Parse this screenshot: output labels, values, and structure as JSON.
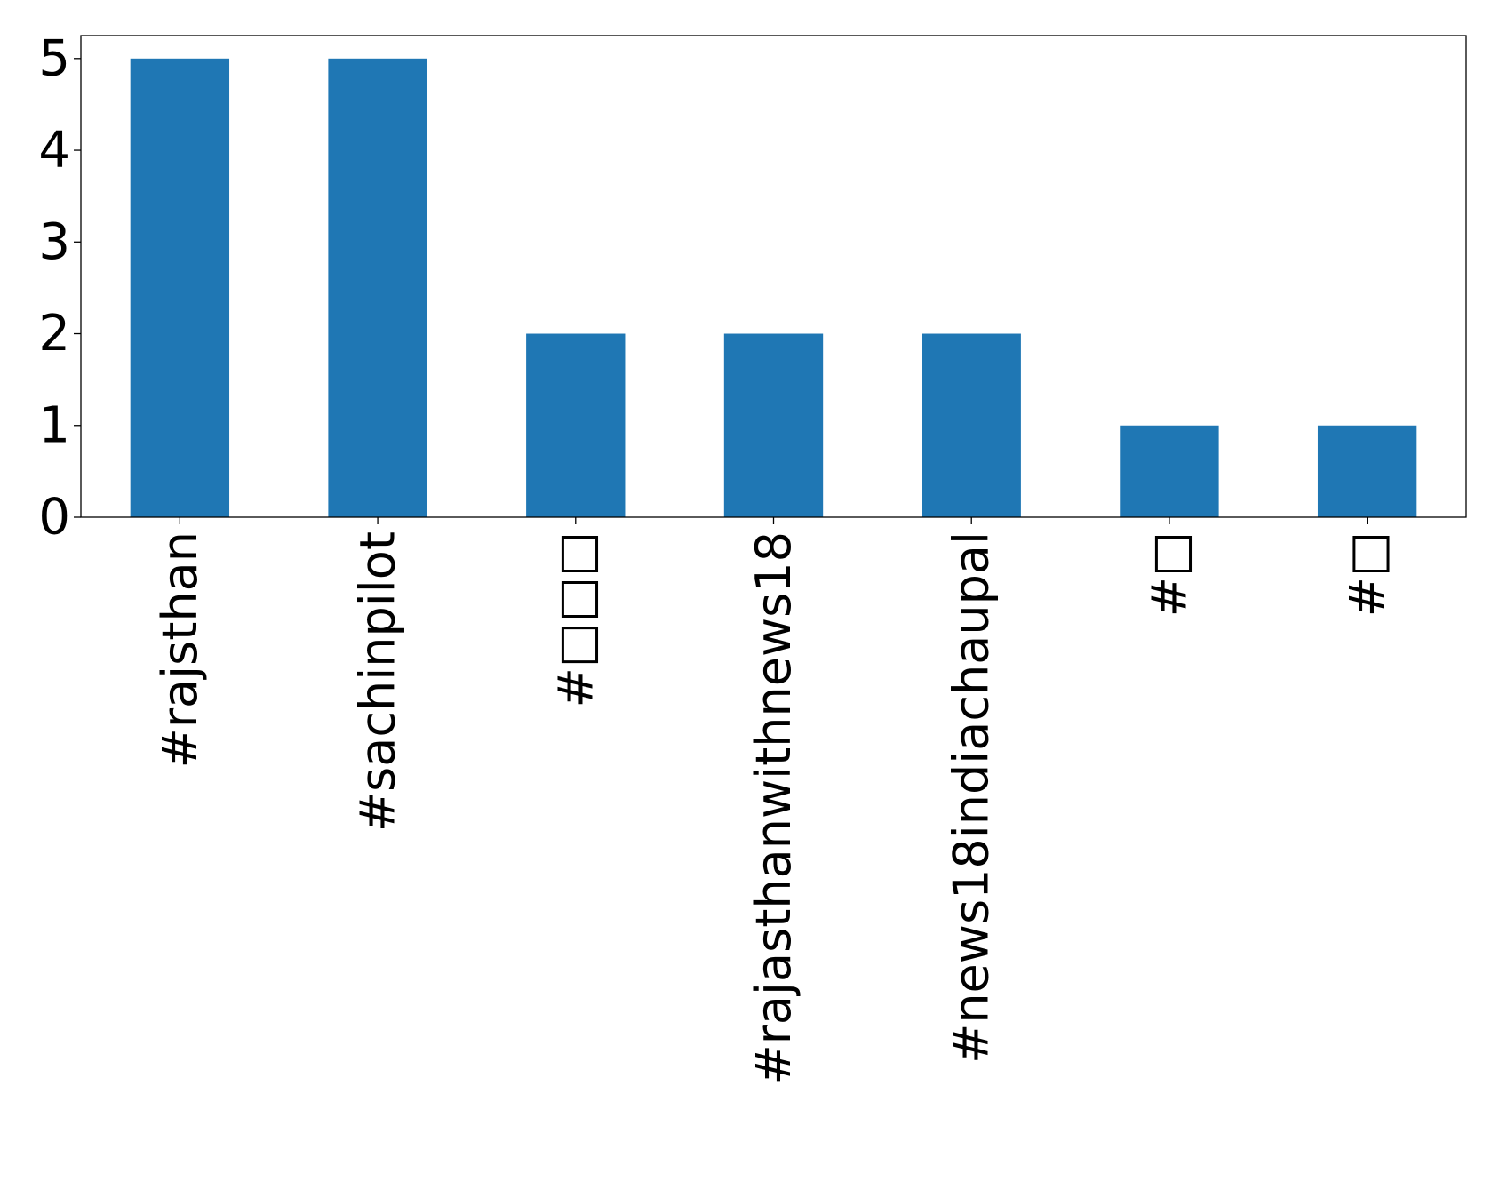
{
  "chart_data": {
    "type": "bar",
    "categories": [
      "#rajsthan",
      "#sachinpilot",
      "#□□□",
      "#rajasthanwithnews18",
      "#news18indiachaupal",
      "#□",
      "#□"
    ],
    "values": [
      5,
      5,
      2,
      2,
      2,
      1,
      1
    ],
    "ylim": [
      0,
      5.25
    ],
    "yticks": [
      "0",
      "1",
      "2",
      "3",
      "4",
      "5"
    ],
    "title": "",
    "xlabel": "",
    "ylabel": "",
    "bar_color": "#1f77b4",
    "grid": false,
    "legend": false
  }
}
